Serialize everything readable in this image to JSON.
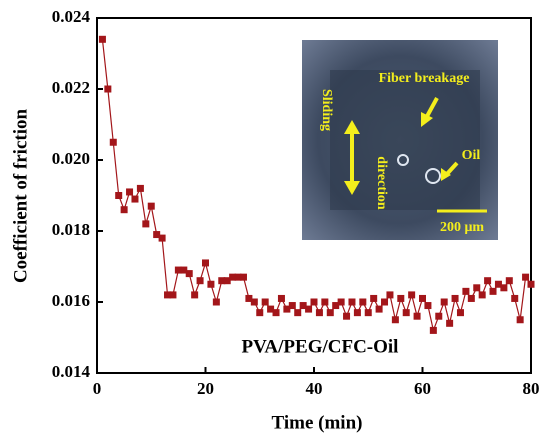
{
  "chart_data": {
    "type": "line",
    "x_label": "Time (min)",
    "y_label": "Coefficient of friction",
    "annotation": "PVA/PEG/CFC-Oil",
    "inset_labels": [
      "Fiber breakage",
      "Sliding",
      "direction",
      "Oil",
      "200 μm"
    ],
    "x": [
      1,
      2,
      3,
      4,
      5,
      6,
      7,
      8,
      9,
      10,
      11,
      12,
      13,
      14,
      15,
      16,
      17,
      18,
      19,
      20,
      21,
      22,
      23,
      24,
      25,
      26,
      27,
      28,
      29,
      30,
      31,
      32,
      33,
      34,
      35,
      36,
      37,
      38,
      39,
      40,
      41,
      42,
      43,
      44,
      45,
      46,
      47,
      48,
      49,
      50,
      51,
      52,
      53,
      54,
      55,
      56,
      57,
      58,
      59,
      60,
      61,
      62,
      63,
      64,
      65,
      66,
      67,
      68,
      69,
      70,
      71,
      72,
      73,
      74,
      75,
      76,
      77,
      78,
      79,
      80
    ],
    "series": [
      {
        "name": "PVA/PEG/CFC-Oil",
        "color": "#a3161a",
        "values": [
          0.0234,
          0.022,
          0.0205,
          0.019,
          0.0186,
          0.0191,
          0.0189,
          0.0192,
          0.0182,
          0.0187,
          0.0179,
          0.0178,
          0.0162,
          0.0162,
          0.0169,
          0.0169,
          0.0168,
          0.0162,
          0.0166,
          0.0171,
          0.0165,
          0.016,
          0.0166,
          0.0166,
          0.0167,
          0.0167,
          0.0167,
          0.0161,
          0.016,
          0.0157,
          0.016,
          0.0158,
          0.0157,
          0.0161,
          0.0158,
          0.0159,
          0.0157,
          0.0159,
          0.0158,
          0.016,
          0.0157,
          0.016,
          0.0157,
          0.0159,
          0.016,
          0.0156,
          0.016,
          0.0157,
          0.016,
          0.0157,
          0.0161,
          0.0158,
          0.016,
          0.0162,
          0.0155,
          0.0161,
          0.0157,
          0.0162,
          0.0156,
          0.0161,
          0.0159,
          0.0152,
          0.0156,
          0.016,
          0.0154,
          0.0161,
          0.0157,
          0.0163,
          0.0161,
          0.0164,
          0.0162,
          0.0166,
          0.0163,
          0.0165,
          0.0164,
          0.0166,
          0.0161,
          0.0155,
          0.0167,
          0.0165
        ]
      }
    ],
    "xlim": [
      0,
      80
    ],
    "ylim": [
      0.014,
      0.024
    ],
    "xticks": [
      0,
      20,
      40,
      60,
      80
    ],
    "yticks": [
      0.014,
      0.016,
      0.018,
      {
        "value": 0.02,
        "label": "0.020"
      },
      0.022,
      0.024
    ]
  }
}
